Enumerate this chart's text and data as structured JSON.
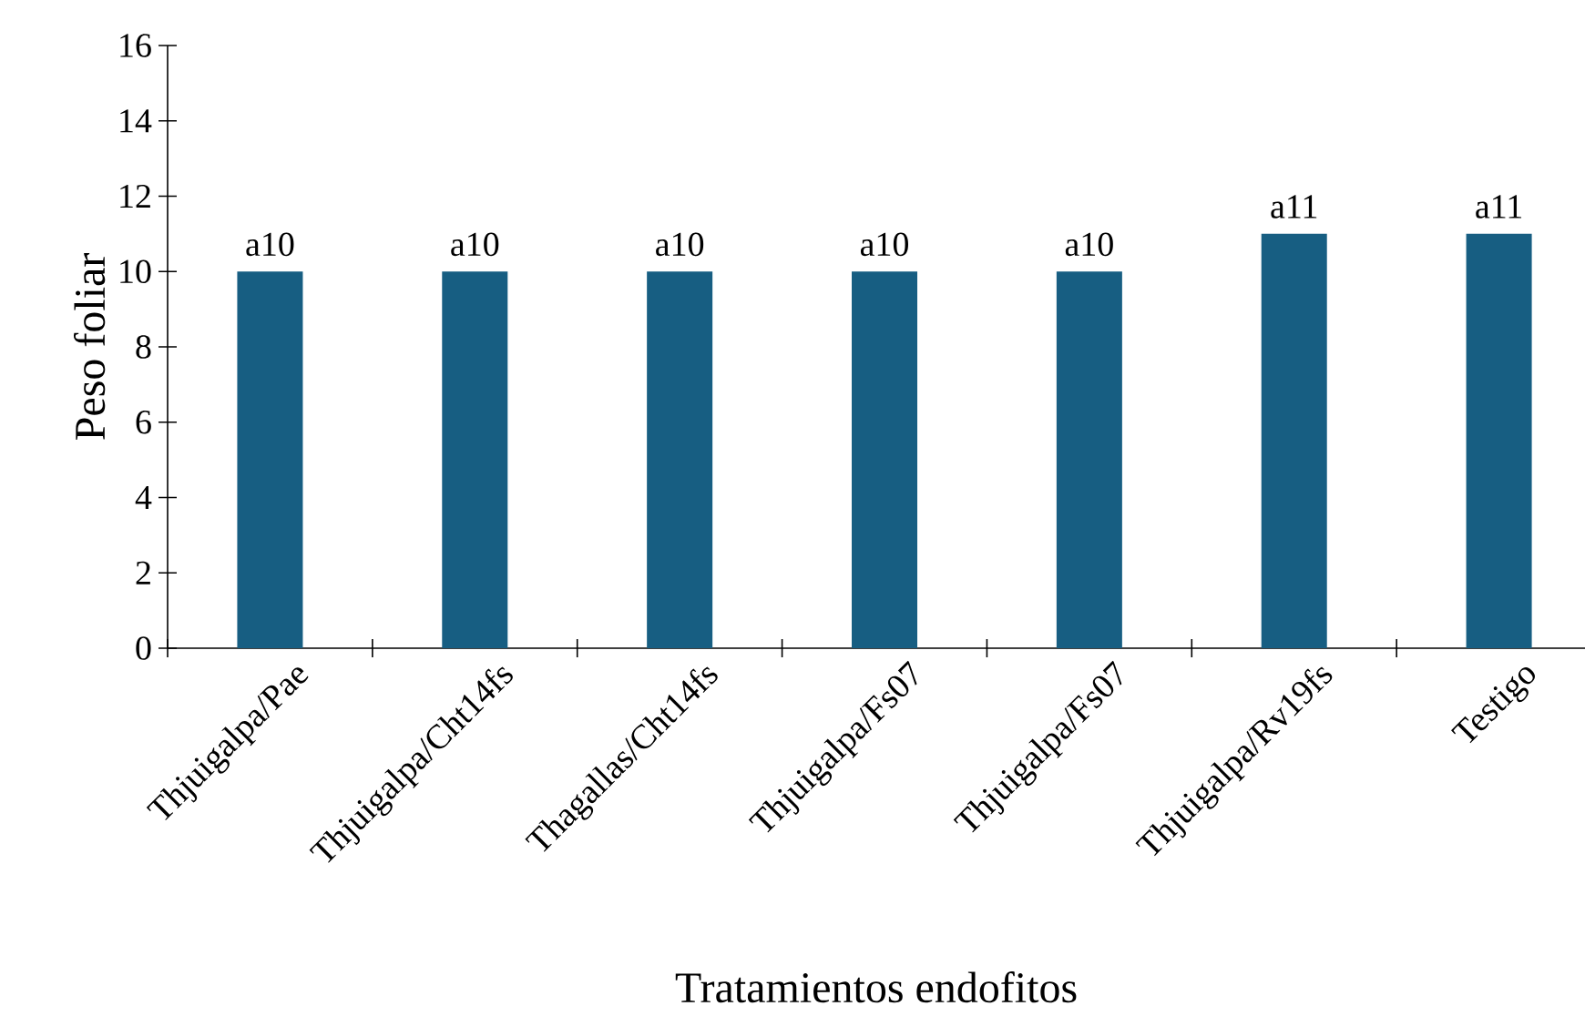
{
  "chart_data": {
    "type": "bar",
    "xlabel": "Tratamientos endofitos",
    "ylabel": "Peso foliar",
    "categories": [
      "Thjuigalpa/Pae",
      "Thjuigalpa/Cht14fs",
      "Thagallas/Cht14fs",
      "Thjuigalpa/Fs07",
      "Thjuigalpa/Fs07",
      "Thjuigalpa/Rv19fs",
      "Testigo"
    ],
    "values": [
      10,
      10,
      10,
      10,
      10,
      11,
      11
    ],
    "value_labels": [
      "a10",
      "a10",
      "a10",
      "a10",
      "a10",
      "a11",
      "a11"
    ],
    "color": "#175e82",
    "ylim": [
      0,
      16
    ],
    "yticks": [
      0,
      2,
      4,
      6,
      8,
      10,
      12,
      14,
      16
    ],
    "grid": false
  }
}
